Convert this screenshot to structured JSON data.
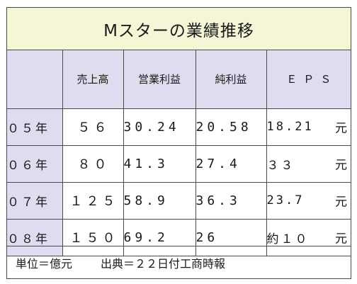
{
  "title": "Mスターの業績推移",
  "columns": [
    "売上高",
    "営業利益",
    "純利益",
    "ＥＰＳ"
  ],
  "rows": [
    {
      "year": "０５年",
      "sales": "５６",
      "operating_profit": "30.24",
      "net_profit": "20.58",
      "eps_value": "18.21",
      "eps_unit": "元"
    },
    {
      "year": "０６年",
      "sales": "８０",
      "operating_profit": "41.3",
      "net_profit": "27.4",
      "eps_value": "３３",
      "eps_unit": "元"
    },
    {
      "year": "０７年",
      "sales": "１２５",
      "operating_profit": "58.9",
      "net_profit": "36.3",
      "eps_value": "23.7",
      "eps_unit": "元"
    },
    {
      "year": "０８年",
      "sales": "１５０",
      "operating_profit": "69.2",
      "net_profit": "26",
      "eps_value": "約１０",
      "eps_unit": "元"
    }
  ],
  "footer": {
    "unit_note": "単位＝億元",
    "source_note": "出典＝２２日付工商時報"
  }
}
